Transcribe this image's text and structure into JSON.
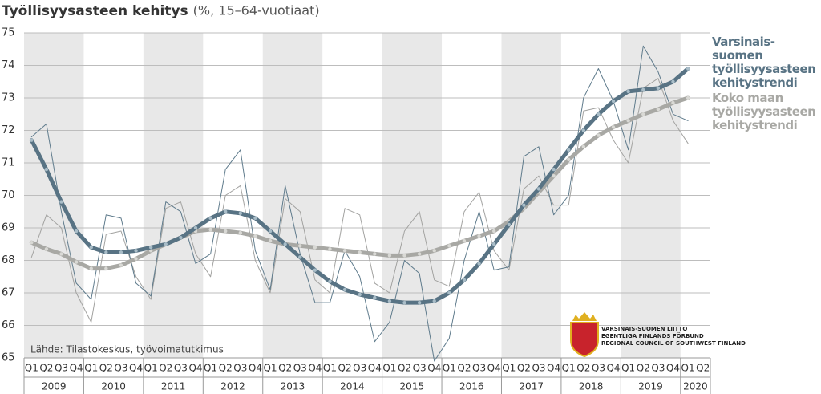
{
  "chart_data": {
    "type": "line",
    "title": "Työllisyysasteen kehitys",
    "subtitle": "(%, 15–64-vuotiaat)",
    "source": "Lähde: Tilastokeskus, työvoimatutkimus",
    "logo_lines": [
      "VARSINAIS-SUOMEN LIITTO",
      "EGENTLIGA FINLANDS FÖRBUND",
      "REGIONAL COUNCIL OF SOUTHWEST FINLAND"
    ],
    "categories": [
      "Q1",
      "Q2",
      "Q3",
      "Q4",
      "Q1",
      "Q2",
      "Q3",
      "Q4",
      "Q1",
      "Q2",
      "Q3",
      "Q4",
      "Q1",
      "Q2",
      "Q3",
      "Q4",
      "Q1",
      "Q2",
      "Q3",
      "Q4",
      "Q1",
      "Q2",
      "Q3",
      "Q4",
      "Q1",
      "Q2",
      "Q3",
      "Q4",
      "Q1",
      "Q2",
      "Q3",
      "Q4",
      "Q1",
      "Q2",
      "Q3",
      "Q4",
      "Q1",
      "Q2",
      "Q3",
      "Q4",
      "Q1",
      "Q2",
      "Q3",
      "Q4",
      "Q1",
      "Q2"
    ],
    "years": [
      "2009",
      "2010",
      "2011",
      "2012",
      "2013",
      "2014",
      "2015",
      "2016",
      "2017",
      "2018",
      "2019",
      "2020"
    ],
    "ylim": [
      65,
      75
    ],
    "yticks": [
      65,
      66,
      67,
      68,
      69,
      70,
      71,
      72,
      73,
      74,
      75
    ],
    "grid": true,
    "series": [
      {
        "color": "#a2a2a0",
        "width": 1,
        "values": [
          68.1,
          69.4,
          69.0,
          67.0,
          66.1,
          68.8,
          68.9,
          67.5,
          66.8,
          69.6,
          69.8,
          68.2,
          67.5,
          70.0,
          70.3,
          68.0,
          67.0,
          69.9,
          69.5,
          67.4,
          67.0,
          69.6,
          69.4,
          67.3,
          67.0,
          68.9,
          69.5,
          67.4,
          67.2,
          69.5,
          70.1,
          68.3,
          67.7,
          70.2,
          70.6,
          69.7,
          69.7,
          72.6,
          72.7,
          71.7,
          71.0,
          73.3,
          73.6,
          72.3,
          71.6,
          null
        ]
      },
      {
        "color": "#5f7b8c",
        "width": 1,
        "values": [
          71.8,
          72.2,
          69.5,
          67.3,
          66.8,
          69.4,
          69.3,
          67.3,
          66.9,
          69.8,
          69.5,
          67.9,
          68.2,
          70.8,
          71.4,
          68.3,
          67.1,
          70.3,
          68.2,
          66.7,
          66.7,
          68.3,
          67.5,
          65.5,
          66.1,
          68.0,
          67.6,
          64.9,
          65.6,
          68.0,
          69.5,
          67.7,
          67.8,
          71.2,
          71.5,
          69.4,
          70.0,
          73.0,
          73.9,
          72.9,
          71.4,
          74.6,
          73.8,
          72.5,
          72.3,
          null
        ]
      },
      {
        "name": "Koko maan työllisyysasteen kehitystrendi",
        "color": "#a8a8a4",
        "dot": "#d9d9d5",
        "width": 5,
        "values": [
          68.55,
          68.35,
          68.2,
          67.95,
          67.75,
          67.75,
          67.85,
          68.05,
          68.3,
          68.5,
          68.7,
          68.9,
          68.95,
          68.9,
          68.85,
          68.75,
          68.6,
          68.5,
          68.45,
          68.4,
          68.35,
          68.3,
          68.25,
          68.2,
          68.15,
          68.15,
          68.2,
          68.3,
          68.45,
          68.6,
          68.75,
          68.9,
          69.2,
          69.6,
          70.1,
          70.6,
          71.1,
          71.5,
          71.85,
          72.1,
          72.3,
          72.5,
          72.65,
          72.85,
          73.0,
          null
        ]
      },
      {
        "name": "Varsinais-suomen työllisyysasteen kehitystrendi",
        "color": "#587384",
        "dot": "#a9bdc8",
        "width": 5,
        "values": [
          71.7,
          70.8,
          69.8,
          68.9,
          68.4,
          68.25,
          68.25,
          68.3,
          68.4,
          68.5,
          68.7,
          69.0,
          69.3,
          69.5,
          69.45,
          69.3,
          68.9,
          68.5,
          68.1,
          67.7,
          67.35,
          67.1,
          66.95,
          66.85,
          66.75,
          66.7,
          66.7,
          66.75,
          67.0,
          67.4,
          67.9,
          68.5,
          69.1,
          69.7,
          70.2,
          70.8,
          71.4,
          72.0,
          72.5,
          72.9,
          73.2,
          73.25,
          73.3,
          73.5,
          73.9,
          null
        ]
      }
    ]
  }
}
